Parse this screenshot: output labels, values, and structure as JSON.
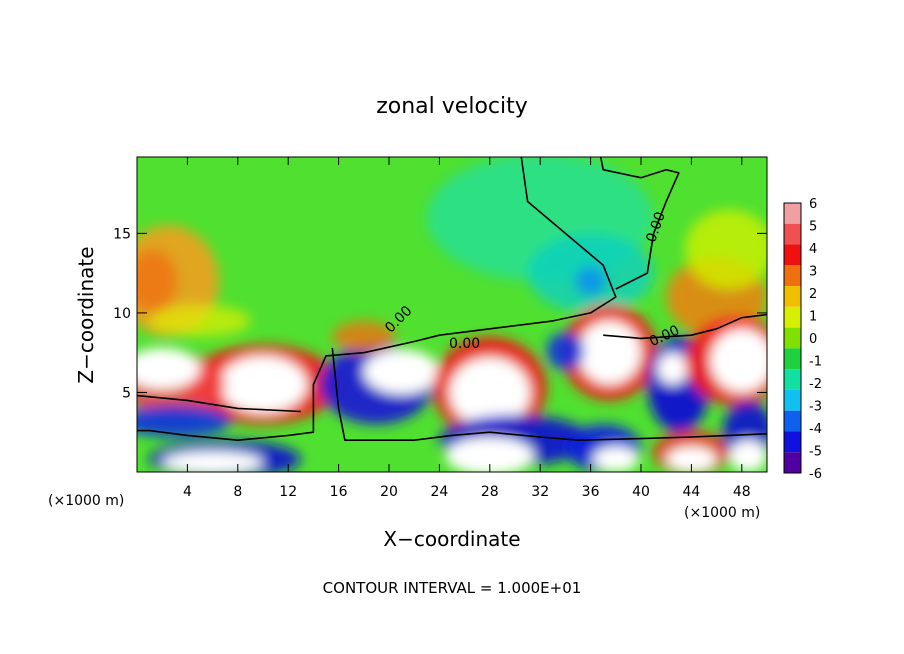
{
  "chart_data": {
    "type": "heatmap",
    "title": "zonal velocity",
    "xlabel": "X−coordinate",
    "ylabel": "Z−coordinate",
    "x_unit_left": "(×1000 m)",
    "x_unit_right": "(×1000 m)",
    "footer": "CONTOUR INTERVAL = 1.000E+01",
    "xlim": [
      0,
      50
    ],
    "ylim": [
      0,
      19.8
    ],
    "x_ticks": [
      4,
      8,
      12,
      16,
      20,
      24,
      28,
      32,
      36,
      40,
      44,
      48
    ],
    "y_ticks": [
      5,
      10,
      15
    ],
    "colorbar": {
      "range": [
        -6,
        6
      ],
      "ticks": [
        6,
        5,
        4,
        3,
        2,
        1,
        0,
        -1,
        -2,
        -3,
        -4,
        -5,
        -6
      ],
      "colors": [
        "#f0a0a0",
        "#f05050",
        "#f01010",
        "#f07010",
        "#f0c000",
        "#d8f000",
        "#80e000",
        "#20d040",
        "#10e0a0",
        "#10c0f0",
        "#1060f0",
        "#1010e0",
        "#5000a0"
      ],
      "over_color": "#ffffff"
    },
    "contour_labels": [
      {
        "text": "0.00",
        "x": 21,
        "y": 9.4,
        "rotation": -45
      },
      {
        "text": "0.00",
        "x": 26,
        "y": 7.8,
        "rotation": 0
      },
      {
        "text": "0.00",
        "x": 41.5,
        "y": 15.3,
        "rotation": -70
      },
      {
        "text": "0.00",
        "x": 42,
        "y": 8.3,
        "rotation": -25
      }
    ],
    "background_field": "#50e030",
    "blobs": [
      {
        "x": 2.5,
        "y": 12,
        "rx": 4,
        "ry": 3.5,
        "color": "#f0a020",
        "opacity": 0.9
      },
      {
        "x": 1.2,
        "y": 12,
        "rx": 2,
        "ry": 2,
        "color": "#f07010",
        "opacity": 0.8
      },
      {
        "x": 5,
        "y": 9.5,
        "rx": 4,
        "ry": 1,
        "color": "#e0f000",
        "opacity": 0.7
      },
      {
        "x": 46,
        "y": 11,
        "rx": 4,
        "ry": 2.5,
        "color": "#f08010",
        "opacity": 0.85
      },
      {
        "x": 47,
        "y": 14,
        "rx": 3.5,
        "ry": 2.5,
        "color": "#d0f000",
        "opacity": 0.8
      },
      {
        "x": 32,
        "y": 16,
        "rx": 9,
        "ry": 4,
        "color": "#20e0a0",
        "opacity": 0.75
      },
      {
        "x": 36,
        "y": 12.5,
        "rx": 5,
        "ry": 2.5,
        "color": "#10d0c0",
        "opacity": 0.8
      },
      {
        "x": 36,
        "y": 12,
        "rx": 1.2,
        "ry": 0.9,
        "color": "#1090f0",
        "opacity": 0.9
      },
      {
        "x": 10,
        "y": 5.5,
        "rx": 6,
        "ry": 2.5,
        "color": "#f02020",
        "opacity": 0.95
      },
      {
        "x": 10,
        "y": 5.5,
        "rx": 3.5,
        "ry": 1.8,
        "color": "#ffffff",
        "opacity": 1
      },
      {
        "x": 3,
        "y": 5.5,
        "rx": 4,
        "ry": 2,
        "color": "#f04040",
        "opacity": 0.9
      },
      {
        "x": 2,
        "y": 6.5,
        "rx": 3,
        "ry": 1.3,
        "color": "#ffffff",
        "opacity": 1
      },
      {
        "x": 3,
        "y": 3.2,
        "rx": 4.5,
        "ry": 1,
        "color": "#1030e0",
        "opacity": 0.9
      },
      {
        "x": 7,
        "y": 0.8,
        "rx": 6,
        "ry": 1.2,
        "color": "#1010d0",
        "opacity": 0.9
      },
      {
        "x": 6,
        "y": 0.6,
        "rx": 4,
        "ry": 0.7,
        "color": "#ffffff",
        "opacity": 1
      },
      {
        "x": 19,
        "y": 5.5,
        "rx": 4.5,
        "ry": 2.5,
        "color": "#2020d0",
        "opacity": 0.95
      },
      {
        "x": 21,
        "y": 6.3,
        "rx": 3,
        "ry": 1.4,
        "color": "#ffffff",
        "opacity": 1
      },
      {
        "x": 18,
        "y": 8.5,
        "rx": 2.5,
        "ry": 1,
        "color": "#f07010",
        "opacity": 0.8
      },
      {
        "x": 28,
        "y": 5.3,
        "rx": 4.5,
        "ry": 3.2,
        "color": "#f02020",
        "opacity": 0.95
      },
      {
        "x": 28,
        "y": 5,
        "rx": 3.2,
        "ry": 2.2,
        "color": "#ffffff",
        "opacity": 1
      },
      {
        "x": 30,
        "y": 2,
        "rx": 6,
        "ry": 1.6,
        "color": "#1010d0",
        "opacity": 0.9
      },
      {
        "x": 28,
        "y": 1,
        "rx": 3.5,
        "ry": 1.2,
        "color": "#ffffff",
        "opacity": 1
      },
      {
        "x": 37.5,
        "y": 7.5,
        "rx": 3.8,
        "ry": 3,
        "color": "#f02020",
        "opacity": 0.95
      },
      {
        "x": 37.5,
        "y": 7.5,
        "rx": 2.5,
        "ry": 2,
        "color": "#ffffff",
        "opacity": 1
      },
      {
        "x": 34,
        "y": 7.6,
        "rx": 1.5,
        "ry": 1.2,
        "color": "#1030e0",
        "opacity": 0.9
      },
      {
        "x": 43,
        "y": 5.5,
        "rx": 2.5,
        "ry": 3,
        "color": "#1010d0",
        "opacity": 0.95
      },
      {
        "x": 42.5,
        "y": 6.5,
        "rx": 1.2,
        "ry": 1,
        "color": "#ffffff",
        "opacity": 1
      },
      {
        "x": 47.5,
        "y": 7,
        "rx": 4,
        "ry": 2.8,
        "color": "#f02020",
        "opacity": 0.95
      },
      {
        "x": 48,
        "y": 7,
        "rx": 2.5,
        "ry": 2,
        "color": "#ffffff",
        "opacity": 1
      },
      {
        "x": 37,
        "y": 1.5,
        "rx": 3,
        "ry": 1.5,
        "color": "#1020e0",
        "opacity": 0.9
      },
      {
        "x": 38,
        "y": 0.8,
        "rx": 1.8,
        "ry": 0.8,
        "color": "#ffffff",
        "opacity": 1
      },
      {
        "x": 44,
        "y": 1.2,
        "rx": 3,
        "ry": 1.4,
        "color": "#f02020",
        "opacity": 0.9
      },
      {
        "x": 44,
        "y": 0.8,
        "rx": 2,
        "ry": 0.8,
        "color": "#ffffff",
        "opacity": 1
      },
      {
        "x": 48.5,
        "y": 2.5,
        "rx": 2,
        "ry": 2,
        "color": "#1010d0",
        "opacity": 0.9
      },
      {
        "x": 48.5,
        "y": 1,
        "rx": 1.5,
        "ry": 1,
        "color": "#ffffff",
        "opacity": 1
      }
    ],
    "contours": [
      [
        [
          30.5,
          19.8
        ],
        [
          31,
          17
        ],
        [
          34,
          15
        ],
        [
          37,
          13
        ],
        [
          38,
          11
        ],
        [
          36,
          10
        ],
        [
          33,
          9.5
        ],
        [
          28,
          9
        ],
        [
          24,
          8.6
        ],
        [
          22,
          8.2
        ],
        [
          18,
          7.5
        ],
        [
          15,
          7.3
        ],
        [
          14,
          5.5
        ],
        [
          14,
          2.5
        ],
        [
          12,
          2.3
        ],
        [
          8,
          2
        ],
        [
          4,
          2.3
        ],
        [
          1,
          2.6
        ],
        [
          0,
          2.6
        ]
      ],
      [
        [
          0,
          4.8
        ],
        [
          4,
          4.5
        ],
        [
          8,
          4
        ],
        [
          13,
          3.8
        ]
      ],
      [
        [
          15.5,
          7.8
        ],
        [
          16,
          4
        ],
        [
          16.5,
          2
        ],
        [
          22,
          2
        ],
        [
          25,
          2.3
        ],
        [
          28,
          2.5
        ],
        [
          32,
          2.2
        ],
        [
          35,
          2
        ],
        [
          40,
          2.1
        ],
        [
          44,
          2.2
        ],
        [
          47,
          2.3
        ],
        [
          50,
          2.4
        ]
      ],
      [
        [
          37,
          8.6
        ],
        [
          40,
          8.4
        ],
        [
          42,
          8.5
        ],
        [
          44,
          8.6
        ],
        [
          46,
          9
        ],
        [
          48,
          9.7
        ],
        [
          50,
          9.9
        ]
      ],
      [
        [
          36.8,
          19.8
        ],
        [
          37,
          19
        ],
        [
          40,
          18.5
        ],
        [
          42,
          19
        ],
        [
          43,
          18.8
        ],
        [
          42,
          17
        ],
        [
          41,
          15
        ],
        [
          40.5,
          12.5
        ],
        [
          38,
          11.5
        ]
      ]
    ]
  }
}
